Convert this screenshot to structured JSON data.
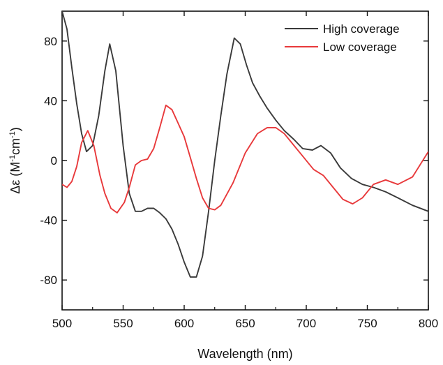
{
  "chart_data": {
    "type": "line",
    "title": "",
    "xlabel": "Wavelength (nm)",
    "ylabel": {
      "base": "Δε (M",
      "sup1": "-1",
      "mid": "cm",
      "sup2": "-1",
      "end": ")"
    },
    "xlim": [
      500,
      800
    ],
    "ylim": [
      -100,
      100
    ],
    "xticks": [
      500,
      550,
      600,
      650,
      700,
      750,
      800
    ],
    "yticks": [
      -80,
      -40,
      0,
      40,
      80
    ],
    "xtick_labels": [
      "500",
      "550",
      "600",
      "650",
      "700",
      "750",
      "800"
    ],
    "ytick_labels": [
      "-80",
      "-40",
      "0",
      "40",
      "80"
    ],
    "grid": false,
    "legend_position": "top-right",
    "series": [
      {
        "name": "High coverage",
        "color": "#3a3a3a",
        "x": [
          500,
          504,
          508,
          512,
          516,
          520,
          525,
          530,
          535,
          539,
          544,
          550,
          555,
          560,
          565,
          570,
          575,
          580,
          585,
          590,
          595,
          600,
          605,
          610,
          615,
          620,
          625,
          630,
          635,
          641,
          646,
          651,
          656,
          662,
          668,
          675,
          682,
          690,
          697,
          705,
          712,
          720,
          728,
          737,
          746,
          755,
          765,
          775,
          787,
          800
        ],
        "y": [
          100,
          88,
          62,
          38,
          18,
          6,
          10,
          30,
          60,
          78,
          60,
          10,
          -22,
          -34,
          -34,
          -32,
          -32,
          -35,
          -39,
          -46,
          -56,
          -68,
          -78,
          -78,
          -64,
          -34,
          0,
          30,
          58,
          82,
          78,
          64,
          52,
          43,
          35,
          27,
          20,
          14,
          8,
          7,
          10,
          5,
          -5,
          -12,
          -16,
          -18,
          -21,
          -25,
          -30,
          -34
        ]
      },
      {
        "name": "Low coverage",
        "color": "#e8393b",
        "x": [
          500,
          504,
          508,
          512,
          516,
          521,
          526,
          531,
          535,
          540,
          545,
          551,
          555,
          560,
          565,
          570,
          575,
          580,
          585,
          590,
          595,
          600,
          605,
          610,
          615,
          620,
          625,
          630,
          640,
          650,
          660,
          668,
          675,
          682,
          690,
          698,
          706,
          714,
          722,
          730,
          738,
          746,
          755,
          765,
          775,
          787,
          800
        ],
        "y": [
          -16,
          -18,
          -14,
          -4,
          12,
          20,
          10,
          -10,
          -22,
          -32,
          -35,
          -28,
          -18,
          -3,
          0,
          1,
          8,
          22,
          37,
          34,
          25,
          16,
          2,
          -12,
          -25,
          -32,
          -33,
          -30,
          -15,
          5,
          18,
          22,
          22,
          18,
          10,
          2,
          -6,
          -10,
          -18,
          -26,
          -29,
          -25,
          -16,
          -13,
          -16,
          -11,
          6
        ]
      }
    ]
  }
}
